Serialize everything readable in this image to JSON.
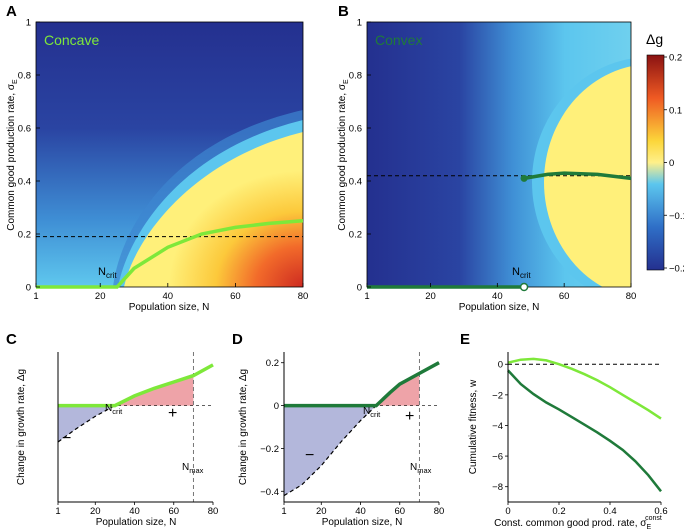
{
  "figure": {
    "colorbar": {
      "label": "Δg",
      "ticks": [
        {
          "label": "0.2",
          "value": 0.2
        },
        {
          "label": "0.1",
          "value": 0.1
        },
        {
          "label": "0",
          "value": 0
        },
        {
          "label": "−0.1",
          "value": -0.1
        },
        {
          "label": "−0.2",
          "value": -0.2
        }
      ]
    }
  },
  "chart_data": [
    {
      "panel": "A",
      "type": "heatmap",
      "inset_label": "Concave",
      "xlabel": "Population size, N",
      "ylabel": "Common good production rate, σ",
      "ylabel_sub": "E",
      "xlim": [
        1,
        80
      ],
      "ylim": [
        0,
        1
      ],
      "xticks": [
        1,
        20,
        40,
        60,
        80
      ],
      "yticks": [
        0,
        0.2,
        0.4,
        0.6,
        0.8,
        1
      ],
      "colorscale_range": [
        -0.2,
        0.2
      ],
      "dashed_level": 0.19,
      "annotation": {
        "text": "N",
        "sub": "crit",
        "x": 25,
        "y": 0
      },
      "curve": {
        "color": "#7ee83a",
        "x": [
          1,
          25,
          30,
          40,
          50,
          60,
          70,
          80
        ],
        "y": [
          0,
          0,
          0.07,
          0.15,
          0.2,
          0.225,
          0.24,
          0.25
        ]
      }
    },
    {
      "panel": "B",
      "type": "heatmap",
      "inset_label": "Convex",
      "xlabel": "Population size, N",
      "ylabel": "Common good production rate, σ",
      "ylabel_sub": "E",
      "xlim": [
        1,
        80
      ],
      "ylim": [
        0,
        1
      ],
      "xticks": [
        1,
        20,
        40,
        60,
        80
      ],
      "yticks": [
        0,
        0.2,
        0.4,
        0.6,
        0.8,
        1
      ],
      "colorscale_range": [
        -0.2,
        0.2
      ],
      "dashed_level": 0.42,
      "annotation": {
        "text": "N",
        "sub": "crit",
        "x": 48,
        "y": 0
      },
      "curve_low": {
        "color": "#1f7a3a",
        "x": [
          1,
          48
        ],
        "y": [
          0,
          0
        ]
      },
      "curve_high": {
        "color": "#1f7a3a",
        "x": [
          48,
          55,
          60,
          70,
          80
        ],
        "y": [
          0.41,
          0.425,
          0.43,
          0.425,
          0.41
        ]
      }
    },
    {
      "panel": "C",
      "type": "line",
      "xlabel": "Population size, N",
      "ylabel": "Change in growth rate, Δg",
      "xlim": [
        1,
        80
      ],
      "ylim": [
        -0.45,
        0.25
      ],
      "xticks": [
        1,
        20,
        40,
        60,
        80
      ],
      "x": [
        1,
        10,
        20,
        30,
        40,
        50,
        60,
        70,
        80
      ],
      "series": [
        {
          "name": "Δg (dashed)",
          "values": [
            -0.17,
            -0.11,
            -0.05,
            0.0,
            0.045,
            0.08,
            0.11,
            0.14,
            0.19
          ]
        },
        {
          "name": "Δg clipped",
          "color": "#7ee83a",
          "values": [
            0.0,
            0.0,
            0.0,
            0.0,
            0.045,
            0.08,
            0.11,
            0.14,
            0.19
          ]
        }
      ],
      "x_max_line": 70,
      "labels": {
        "minus": "−",
        "plus": "+",
        "ncrit": "N",
        "ncrit_sub": "crit",
        "nmax": "N",
        "nmax_sub": "max"
      }
    },
    {
      "panel": "D",
      "type": "line",
      "xlabel": "Population size, N",
      "ylabel": "Change in growth rate, Δg",
      "xlim": [
        1,
        80
      ],
      "ylim": [
        -0.45,
        0.25
      ],
      "xticks": [
        1,
        20,
        40,
        60,
        80
      ],
      "yticks": [
        -0.4,
        -0.2,
        0,
        0.2
      ],
      "x": [
        1,
        10,
        20,
        30,
        40,
        48,
        55,
        60,
        70,
        80
      ],
      "series": [
        {
          "name": "Δg (dashed)",
          "values": [
            -0.42,
            -0.37,
            -0.28,
            -0.17,
            -0.07,
            0.0,
            0.06,
            0.1,
            0.15,
            0.2
          ]
        },
        {
          "name": "Δg clipped",
          "color": "#1f7a3a",
          "values": [
            0.0,
            0.0,
            0.0,
            0.0,
            0.0,
            0.0,
            0.06,
            0.1,
            0.15,
            0.2
          ]
        }
      ],
      "x_max_line": 70,
      "labels": {
        "minus": "−",
        "plus": "+",
        "ncrit": "N",
        "ncrit_sub": "crit",
        "nmax": "N",
        "nmax_sub": "max"
      }
    },
    {
      "panel": "E",
      "type": "line",
      "xlabel": "Const. common good prod. rate, σ",
      "xlabel_sub": "E",
      "xlabel_sup": "const",
      "ylabel": "Cumulative fitness, w",
      "xlim": [
        0,
        0.6
      ],
      "ylim": [
        -9,
        0.8
      ],
      "xticks": [
        0,
        0.2,
        0.4,
        0.6
      ],
      "yticks": [
        0,
        -2,
        -4,
        -6,
        -8
      ],
      "x": [
        0,
        0.05,
        0.1,
        0.15,
        0.2,
        0.25,
        0.3,
        0.35,
        0.4,
        0.45,
        0.5,
        0.55,
        0.6
      ],
      "series": [
        {
          "name": "Concave",
          "color": "#7ee83a",
          "values": [
            0.1,
            0.3,
            0.35,
            0.25,
            0.0,
            -0.3,
            -0.65,
            -1.05,
            -1.5,
            -2.0,
            -2.5,
            -3.0,
            -3.55
          ]
        },
        {
          "name": "Convex",
          "color": "#1f7a3a",
          "values": [
            -0.4,
            -1.3,
            -1.95,
            -2.5,
            -2.95,
            -3.45,
            -3.95,
            -4.45,
            -5.0,
            -5.6,
            -6.35,
            -7.25,
            -8.3
          ]
        }
      ],
      "dashed_level": 0
    }
  ]
}
